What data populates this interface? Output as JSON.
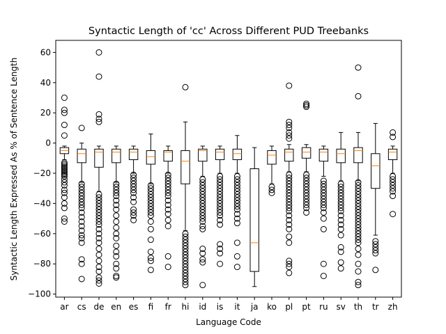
{
  "chart_data": {
    "type": "boxplot",
    "title": "Syntactic Length of 'cc' Across Different PUD Treebanks",
    "xlabel": "Language Code",
    "ylabel": "Syntactic Length Expressed As % of Sentence Length",
    "ylim": [
      -102,
      68
    ],
    "yticks": [
      -100,
      -80,
      -60,
      -40,
      -20,
      0,
      20,
      40,
      60
    ],
    "grid": false,
    "colors": {
      "box": "#000000",
      "median": "#ff7f0e",
      "flier": "#000000"
    },
    "boxes": [
      {
        "label": "ar",
        "q1": -7,
        "median": -5,
        "q3": -3,
        "whislo": -11,
        "whishi": -2,
        "fliers": [
          30,
          22,
          20,
          12,
          5,
          -13,
          -14,
          -15,
          -16,
          -17,
          -18,
          -19,
          -20,
          -21,
          -22,
          -24,
          -26,
          -28,
          -31,
          -33,
          -36,
          -40,
          -43,
          -50,
          -52
        ]
      },
      {
        "label": "cs",
        "q1": -13,
        "median": -7,
        "q3": -4,
        "whislo": -26,
        "whishi": 0,
        "fliers": [
          10,
          -27,
          -29,
          -31,
          -33,
          -35,
          -37,
          -39,
          -41,
          -43,
          -46,
          -49,
          -52,
          -55,
          -58,
          -61,
          -63,
          -66,
          -77,
          -80,
          -90
        ]
      },
      {
        "label": "de",
        "q1": -16,
        "median": -6,
        "q3": -4,
        "whislo": -32,
        "whishi": -2,
        "fliers": [
          60,
          44,
          19,
          16,
          14,
          -34,
          -36,
          -38,
          -40,
          -42,
          -44,
          -46,
          -48,
          -50,
          -52,
          -54,
          -57,
          -60,
          -63,
          -66,
          -70,
          -74,
          -78,
          -82,
          -85,
          -89,
          -91,
          -93
        ]
      },
      {
        "label": "en",
        "q1": -13,
        "median": -6,
        "q3": -4,
        "whislo": -26,
        "whishi": -2,
        "fliers": [
          -27,
          -29,
          -31,
          -33,
          -35,
          -38,
          -41,
          -44,
          -48,
          -52,
          -56,
          -60,
          -63,
          -68,
          -72,
          -75,
          -80,
          -83,
          -88,
          -89
        ]
      },
      {
        "label": "es",
        "q1": -11,
        "median": -6,
        "q3": -4,
        "whislo": -20,
        "whishi": -2,
        "fliers": [
          -21,
          -23,
          -25,
          -27,
          -29,
          -31,
          -33,
          -36,
          -39,
          -44,
          -46,
          -48,
          -51
        ]
      },
      {
        "label": "fi",
        "q1": -14,
        "median": -9,
        "q3": -5,
        "whislo": -27,
        "whishi": 6,
        "fliers": [
          -28,
          -30,
          -32,
          -34,
          -36,
          -38,
          -40,
          -42,
          -44,
          -46,
          -48,
          -52,
          -57,
          -64,
          -72,
          -76,
          -78,
          -84
        ]
      },
      {
        "label": "fr",
        "q1": -12,
        "median": -6,
        "q3": -5,
        "whislo": -20,
        "whishi": -2,
        "fliers": [
          -21,
          -23,
          -25,
          -27,
          -29,
          -31,
          -33,
          -35,
          -38,
          -41,
          -44,
          -47,
          -51,
          -55,
          -75,
          -82
        ]
      },
      {
        "label": "hi",
        "q1": -27,
        "median": -12,
        "q3": -5,
        "whislo": -58,
        "whishi": 14,
        "fliers": [
          37,
          -60,
          -62,
          -64,
          -66,
          -68,
          -70,
          -72,
          -74,
          -76,
          -78,
          -80,
          -82,
          -84,
          -86,
          -88,
          -90,
          -92,
          -94
        ]
      },
      {
        "label": "id",
        "q1": -12,
        "median": -5,
        "q3": -4,
        "whislo": -22,
        "whishi": -2,
        "fliers": [
          -24,
          -26,
          -28,
          -30,
          -32,
          -34,
          -36,
          -38,
          -40,
          -42,
          -44,
          -46,
          -48,
          -50,
          -52,
          -55,
          -57,
          -70,
          -73,
          -77,
          -79,
          -94
        ]
      },
      {
        "label": "is",
        "q1": -11,
        "median": -6,
        "q3": -4,
        "whislo": -20,
        "whishi": -2,
        "fliers": [
          -22,
          -24,
          -26,
          -28,
          -30,
          -32,
          -34,
          -36,
          -38,
          -40,
          -42,
          -44,
          -46,
          -48,
          -51,
          -54,
          -67,
          -70,
          -73,
          -80
        ]
      },
      {
        "label": "it",
        "q1": -11,
        "median": -7,
        "q3": -4,
        "whislo": -20,
        "whishi": 5,
        "fliers": [
          -22,
          -24,
          -26,
          -28,
          -30,
          -32,
          -34,
          -36,
          -38,
          -40,
          -42,
          -44,
          -47,
          -50,
          -53,
          -66,
          -75,
          -82
        ]
      },
      {
        "label": "ja",
        "q1": -85,
        "median": -66,
        "q3": -17,
        "whislo": -95,
        "whishi": -3,
        "fliers": []
      },
      {
        "label": "ko",
        "q1": -14,
        "median": -8,
        "q3": -5,
        "whislo": -27,
        "whishi": -2,
        "fliers": [
          -29,
          -31,
          -33
        ]
      },
      {
        "label": "pl",
        "q1": -12,
        "median": -6,
        "q3": -4,
        "whislo": -19,
        "whishi": -1,
        "fliers": [
          38,
          14,
          12,
          10,
          7,
          5,
          3,
          -21,
          -23,
          -25,
          -27,
          -29,
          -31,
          -33,
          -35,
          -37,
          -39,
          -41,
          -43,
          -45,
          -48,
          -51,
          -54,
          -57,
          -62,
          -66,
          -78,
          -80,
          -82,
          -86
        ]
      },
      {
        "label": "pt",
        "q1": -10,
        "median": -6,
        "q3": -3,
        "whislo": -19,
        "whishi": -1,
        "fliers": [
          26,
          25,
          24,
          -21,
          -23,
          -25,
          -27,
          -29,
          -31,
          -33,
          -35,
          -37,
          -39,
          -41,
          -43,
          -46
        ]
      },
      {
        "label": "ru",
        "q1": -12,
        "median": -6,
        "q3": -4,
        "whislo": -22,
        "whishi": -2,
        "fliers": [
          -25,
          -27,
          -29,
          -31,
          -33,
          -35,
          -37,
          -39,
          -41,
          -43,
          -46,
          -50,
          -57,
          -80,
          -88
        ]
      },
      {
        "label": "sv",
        "q1": -13,
        "median": -7,
        "q3": -4,
        "whislo": -25,
        "whishi": 7,
        "fliers": [
          -27,
          -29,
          -31,
          -33,
          -35,
          -37,
          -39,
          -41,
          -43,
          -45,
          -48,
          -51,
          -54,
          -57,
          -61,
          -69,
          -72,
          -79,
          -83
        ]
      },
      {
        "label": "th",
        "q1": -13,
        "median": -5,
        "q3": -3,
        "whislo": -25,
        "whishi": 7,
        "fliers": [
          50,
          31,
          -26,
          -28,
          -30,
          -32,
          -34,
          -36,
          -38,
          -40,
          -42,
          -44,
          -46,
          -48,
          -50,
          -52,
          -54,
          -56,
          -58,
          -60,
          -62,
          -64,
          -66,
          -70,
          -74,
          -80,
          -85,
          -92,
          -94
        ]
      },
      {
        "label": "tr",
        "q1": -30,
        "median": -15,
        "q3": -7,
        "whislo": -61,
        "whishi": 13,
        "fliers": [
          -65,
          -67,
          -69,
          -71,
          -73,
          -84
        ]
      },
      {
        "label": "zh",
        "q1": -11,
        "median": -6,
        "q3": -4,
        "whislo": -20,
        "whishi": -2,
        "fliers": [
          7,
          4,
          -22,
          -24,
          -26,
          -28,
          -30,
          -32,
          -35,
          -47
        ]
      }
    ]
  }
}
